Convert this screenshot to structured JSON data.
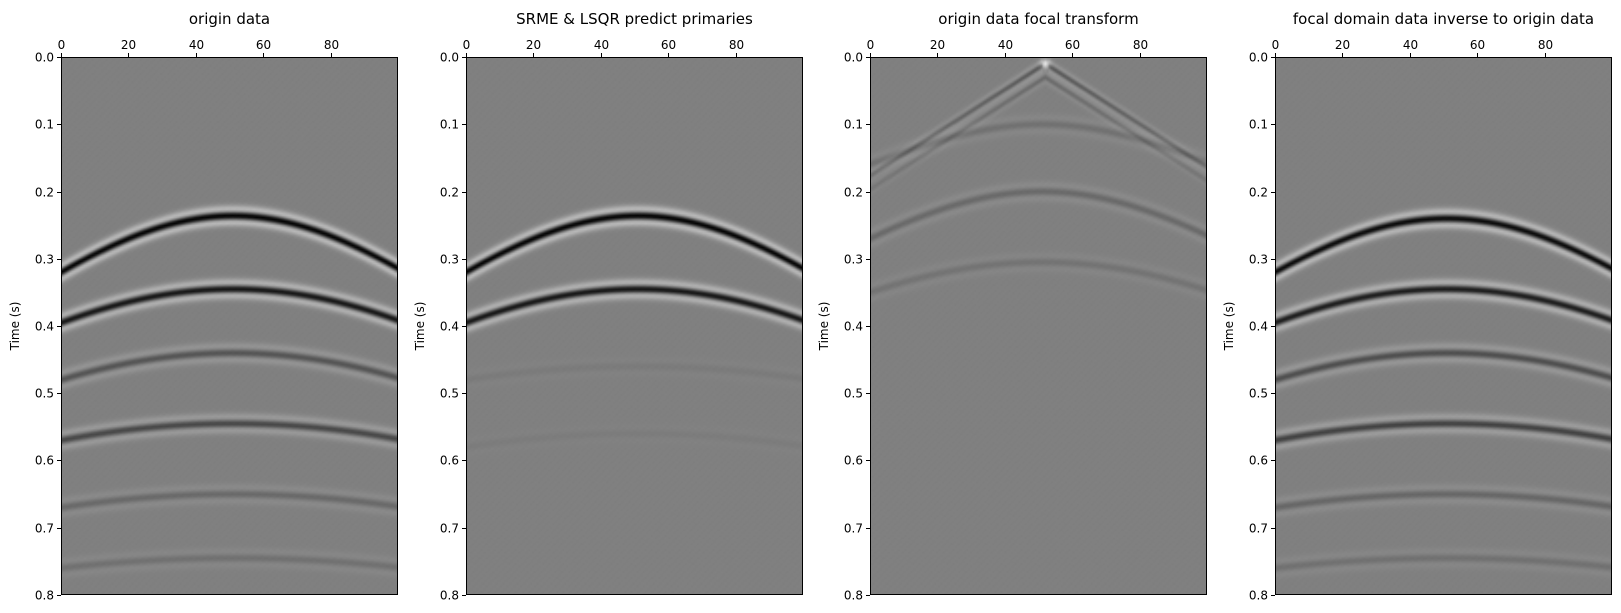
{
  "chart_data": [
    {
      "type": "heatmap",
      "title": "origin data",
      "ylabel": "Time (s)",
      "xlabel": "",
      "xlim": [
        0,
        100
      ],
      "ylim": [
        0.8,
        0.0
      ],
      "xticks": [
        0,
        20,
        40,
        60,
        80
      ],
      "xtick_labels": [
        "0",
        "20",
        "40",
        "60",
        "80"
      ],
      "yticks": [
        0.0,
        0.1,
        0.2,
        0.3,
        0.4,
        0.5,
        0.6,
        0.7,
        0.8
      ],
      "ytick_labels": [
        "0.0",
        "0.1",
        "0.2",
        "0.3",
        "0.4",
        "0.5",
        "0.6",
        "0.7",
        "0.8"
      ],
      "xaxis_position": "top",
      "colormap": "gray",
      "events": [
        {
          "apex_x": 51,
          "apex_t": 0.236,
          "edge_t": 0.32,
          "amplitude": 1.0
        },
        {
          "apex_x": 51,
          "apex_t": 0.345,
          "edge_t": 0.395,
          "amplitude": 0.85
        },
        {
          "apex_x": 51,
          "apex_t": 0.44,
          "edge_t": 0.48,
          "amplitude": 0.35
        },
        {
          "apex_x": 51,
          "apex_t": 0.545,
          "edge_t": 0.57,
          "amplitude": 0.45
        },
        {
          "apex_x": 51,
          "apex_t": 0.65,
          "edge_t": 0.67,
          "amplitude": 0.18
        },
        {
          "apex_x": 51,
          "apex_t": 0.745,
          "edge_t": 0.76,
          "amplitude": 0.12
        }
      ]
    },
    {
      "type": "heatmap",
      "title": "SRME & LSQR predict primaries",
      "ylabel": "Time (s)",
      "xlabel": "",
      "xlim": [
        0,
        100
      ],
      "ylim": [
        0.8,
        0.0
      ],
      "xticks": [
        0,
        20,
        40,
        60,
        80
      ],
      "xtick_labels": [
        "0",
        "20",
        "40",
        "60",
        "80"
      ],
      "yticks": [
        0.0,
        0.1,
        0.2,
        0.3,
        0.4,
        0.5,
        0.6,
        0.7,
        0.8
      ],
      "ytick_labels": [
        "0.0",
        "0.1",
        "0.2",
        "0.3",
        "0.4",
        "0.5",
        "0.6",
        "0.7",
        "0.8"
      ],
      "xaxis_position": "top",
      "colormap": "gray",
      "events": [
        {
          "apex_x": 51,
          "apex_t": 0.236,
          "edge_t": 0.32,
          "amplitude": 1.0
        },
        {
          "apex_x": 51,
          "apex_t": 0.345,
          "edge_t": 0.395,
          "amplitude": 0.85
        },
        {
          "apex_x": 51,
          "apex_t": 0.46,
          "edge_t": 0.48,
          "amplitude": 0.04
        },
        {
          "apex_x": 51,
          "apex_t": 0.56,
          "edge_t": 0.58,
          "amplitude": 0.03
        }
      ]
    },
    {
      "type": "heatmap",
      "title": "origin data focal transform",
      "ylabel": "Time (s)",
      "xlabel": "",
      "xlim": [
        0,
        100
      ],
      "ylim": [
        0.8,
        0.0
      ],
      "xticks": [
        0,
        20,
        40,
        60,
        80
      ],
      "xtick_labels": [
        "0",
        "20",
        "40",
        "60",
        "80"
      ],
      "yticks": [
        0.0,
        0.1,
        0.2,
        0.3,
        0.4,
        0.5,
        0.6,
        0.7,
        0.8
      ],
      "ytick_labels": [
        "0.0",
        "0.1",
        "0.2",
        "0.3",
        "0.4",
        "0.5",
        "0.6",
        "0.7",
        "0.8"
      ],
      "xaxis_position": "top",
      "colormap": "gray",
      "focal_point": {
        "x": 52,
        "t": 0.01
      },
      "events": [
        {
          "apex_x": 51,
          "apex_t": 0.1,
          "edge_t": 0.16,
          "amplitude": 0.12
        },
        {
          "apex_x": 51,
          "apex_t": 0.2,
          "edge_t": 0.27,
          "amplitude": 0.18
        },
        {
          "apex_x": 51,
          "apex_t": 0.305,
          "edge_t": 0.35,
          "amplitude": 0.1
        }
      ]
    },
    {
      "type": "heatmap",
      "title": "focal domain data inverse to origin data",
      "ylabel": "Time (s)",
      "xlabel": "",
      "xlim": [
        0,
        100
      ],
      "ylim": [
        0.8,
        0.0
      ],
      "xticks": [
        0,
        20,
        40,
        60,
        80
      ],
      "xtick_labels": [
        "0",
        "20",
        "40",
        "60",
        "80"
      ],
      "yticks": [
        0.0,
        0.1,
        0.2,
        0.3,
        0.4,
        0.5,
        0.6,
        0.7,
        0.8
      ],
      "ytick_labels": [
        "0.0",
        "0.1",
        "0.2",
        "0.3",
        "0.4",
        "0.5",
        "0.6",
        "0.7",
        "0.8"
      ],
      "xaxis_position": "top",
      "colormap": "gray",
      "events": [
        {
          "apex_x": 51,
          "apex_t": 0.24,
          "edge_t": 0.32,
          "amplitude": 0.95
        },
        {
          "apex_x": 51,
          "apex_t": 0.345,
          "edge_t": 0.395,
          "amplitude": 0.8
        },
        {
          "apex_x": 51,
          "apex_t": 0.44,
          "edge_t": 0.48,
          "amplitude": 0.4
        },
        {
          "apex_x": 51,
          "apex_t": 0.545,
          "edge_t": 0.57,
          "amplitude": 0.5
        },
        {
          "apex_x": 51,
          "apex_t": 0.65,
          "edge_t": 0.67,
          "amplitude": 0.2
        },
        {
          "apex_x": 51,
          "apex_t": 0.745,
          "edge_t": 0.76,
          "amplitude": 0.12
        }
      ]
    }
  ]
}
